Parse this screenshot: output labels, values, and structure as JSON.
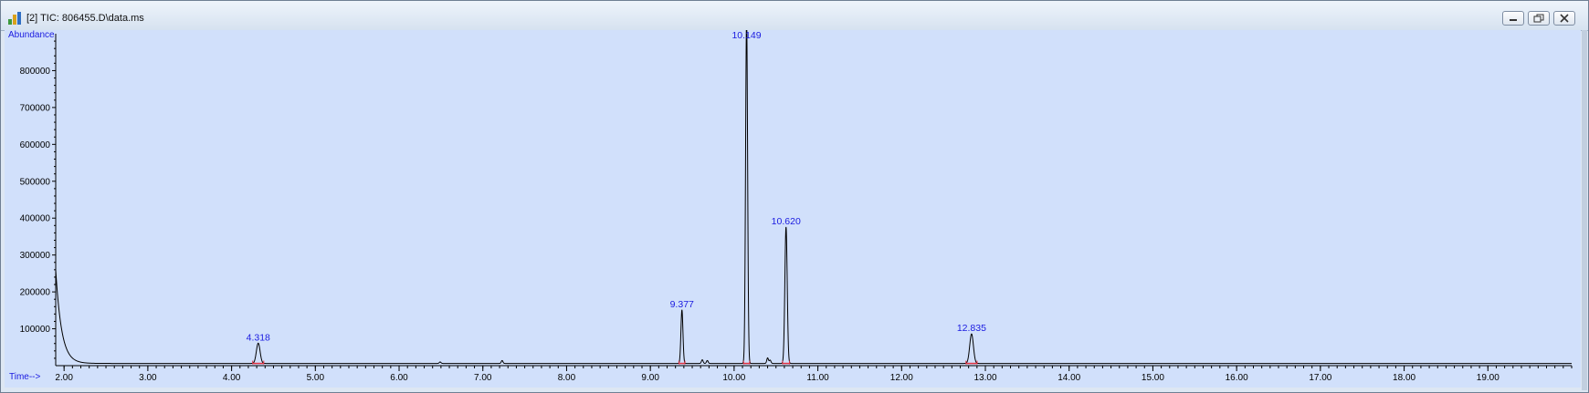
{
  "window": {
    "title": "[2] TIC: 806455.D\\data.ms",
    "buttons": {
      "minimize": "minimize-icon",
      "restore": "restore-icon",
      "close": "close-icon"
    }
  },
  "colors": {
    "plot_background": "#d1e0fb",
    "trace": "#000000",
    "label_text": "#1a1ae0",
    "integration_marks": "#e03040"
  },
  "chart_data": {
    "type": "line",
    "ylabel": "Abundance",
    "xlabel": "Time-->",
    "xlim": [
      1.9,
      20.0
    ],
    "ylim": [
      0,
      900000
    ],
    "x_ticks": [
      "2.00",
      "3.00",
      "4.00",
      "5.00",
      "6.00",
      "7.00",
      "8.00",
      "9.00",
      "10.00",
      "11.00",
      "12.00",
      "13.00",
      "14.00",
      "15.00",
      "16.00",
      "17.00",
      "18.00",
      "19.00"
    ],
    "x_tick_values": [
      2,
      3,
      4,
      5,
      6,
      7,
      8,
      9,
      10,
      11,
      12,
      13,
      14,
      15,
      16,
      17,
      18,
      19
    ],
    "y_ticks": [
      "100000",
      "200000",
      "300000",
      "400000",
      "500000",
      "600000",
      "700000",
      "800000"
    ],
    "y_tick_values": [
      100000,
      200000,
      300000,
      400000,
      500000,
      600000,
      700000,
      800000
    ],
    "peaks": [
      {
        "label": "4.318",
        "rt": 4.318,
        "height": 55000,
        "width": 0.022
      },
      {
        "label": "9.377",
        "rt": 9.377,
        "height": 145000,
        "width": 0.012
      },
      {
        "label": "10.149",
        "rt": 10.149,
        "height": 935000,
        "width": 0.012
      },
      {
        "label": "10.620",
        "rt": 10.62,
        "height": 370000,
        "width": 0.014
      },
      {
        "label": "12.835",
        "rt": 12.835,
        "height": 80000,
        "width": 0.022
      }
    ],
    "minor_peaks": [
      {
        "rt": 6.49,
        "height": 4000
      },
      {
        "rt": 7.23,
        "height": 8000
      },
      {
        "rt": 9.62,
        "height": 10000
      },
      {
        "rt": 9.68,
        "height": 8000
      },
      {
        "rt": 10.4,
        "height": 15000
      },
      {
        "rt": 10.43,
        "height": 9000
      }
    ],
    "initial_tail": {
      "start_value": 260000,
      "decay_min": 0.07,
      "baseline": 6000
    }
  }
}
